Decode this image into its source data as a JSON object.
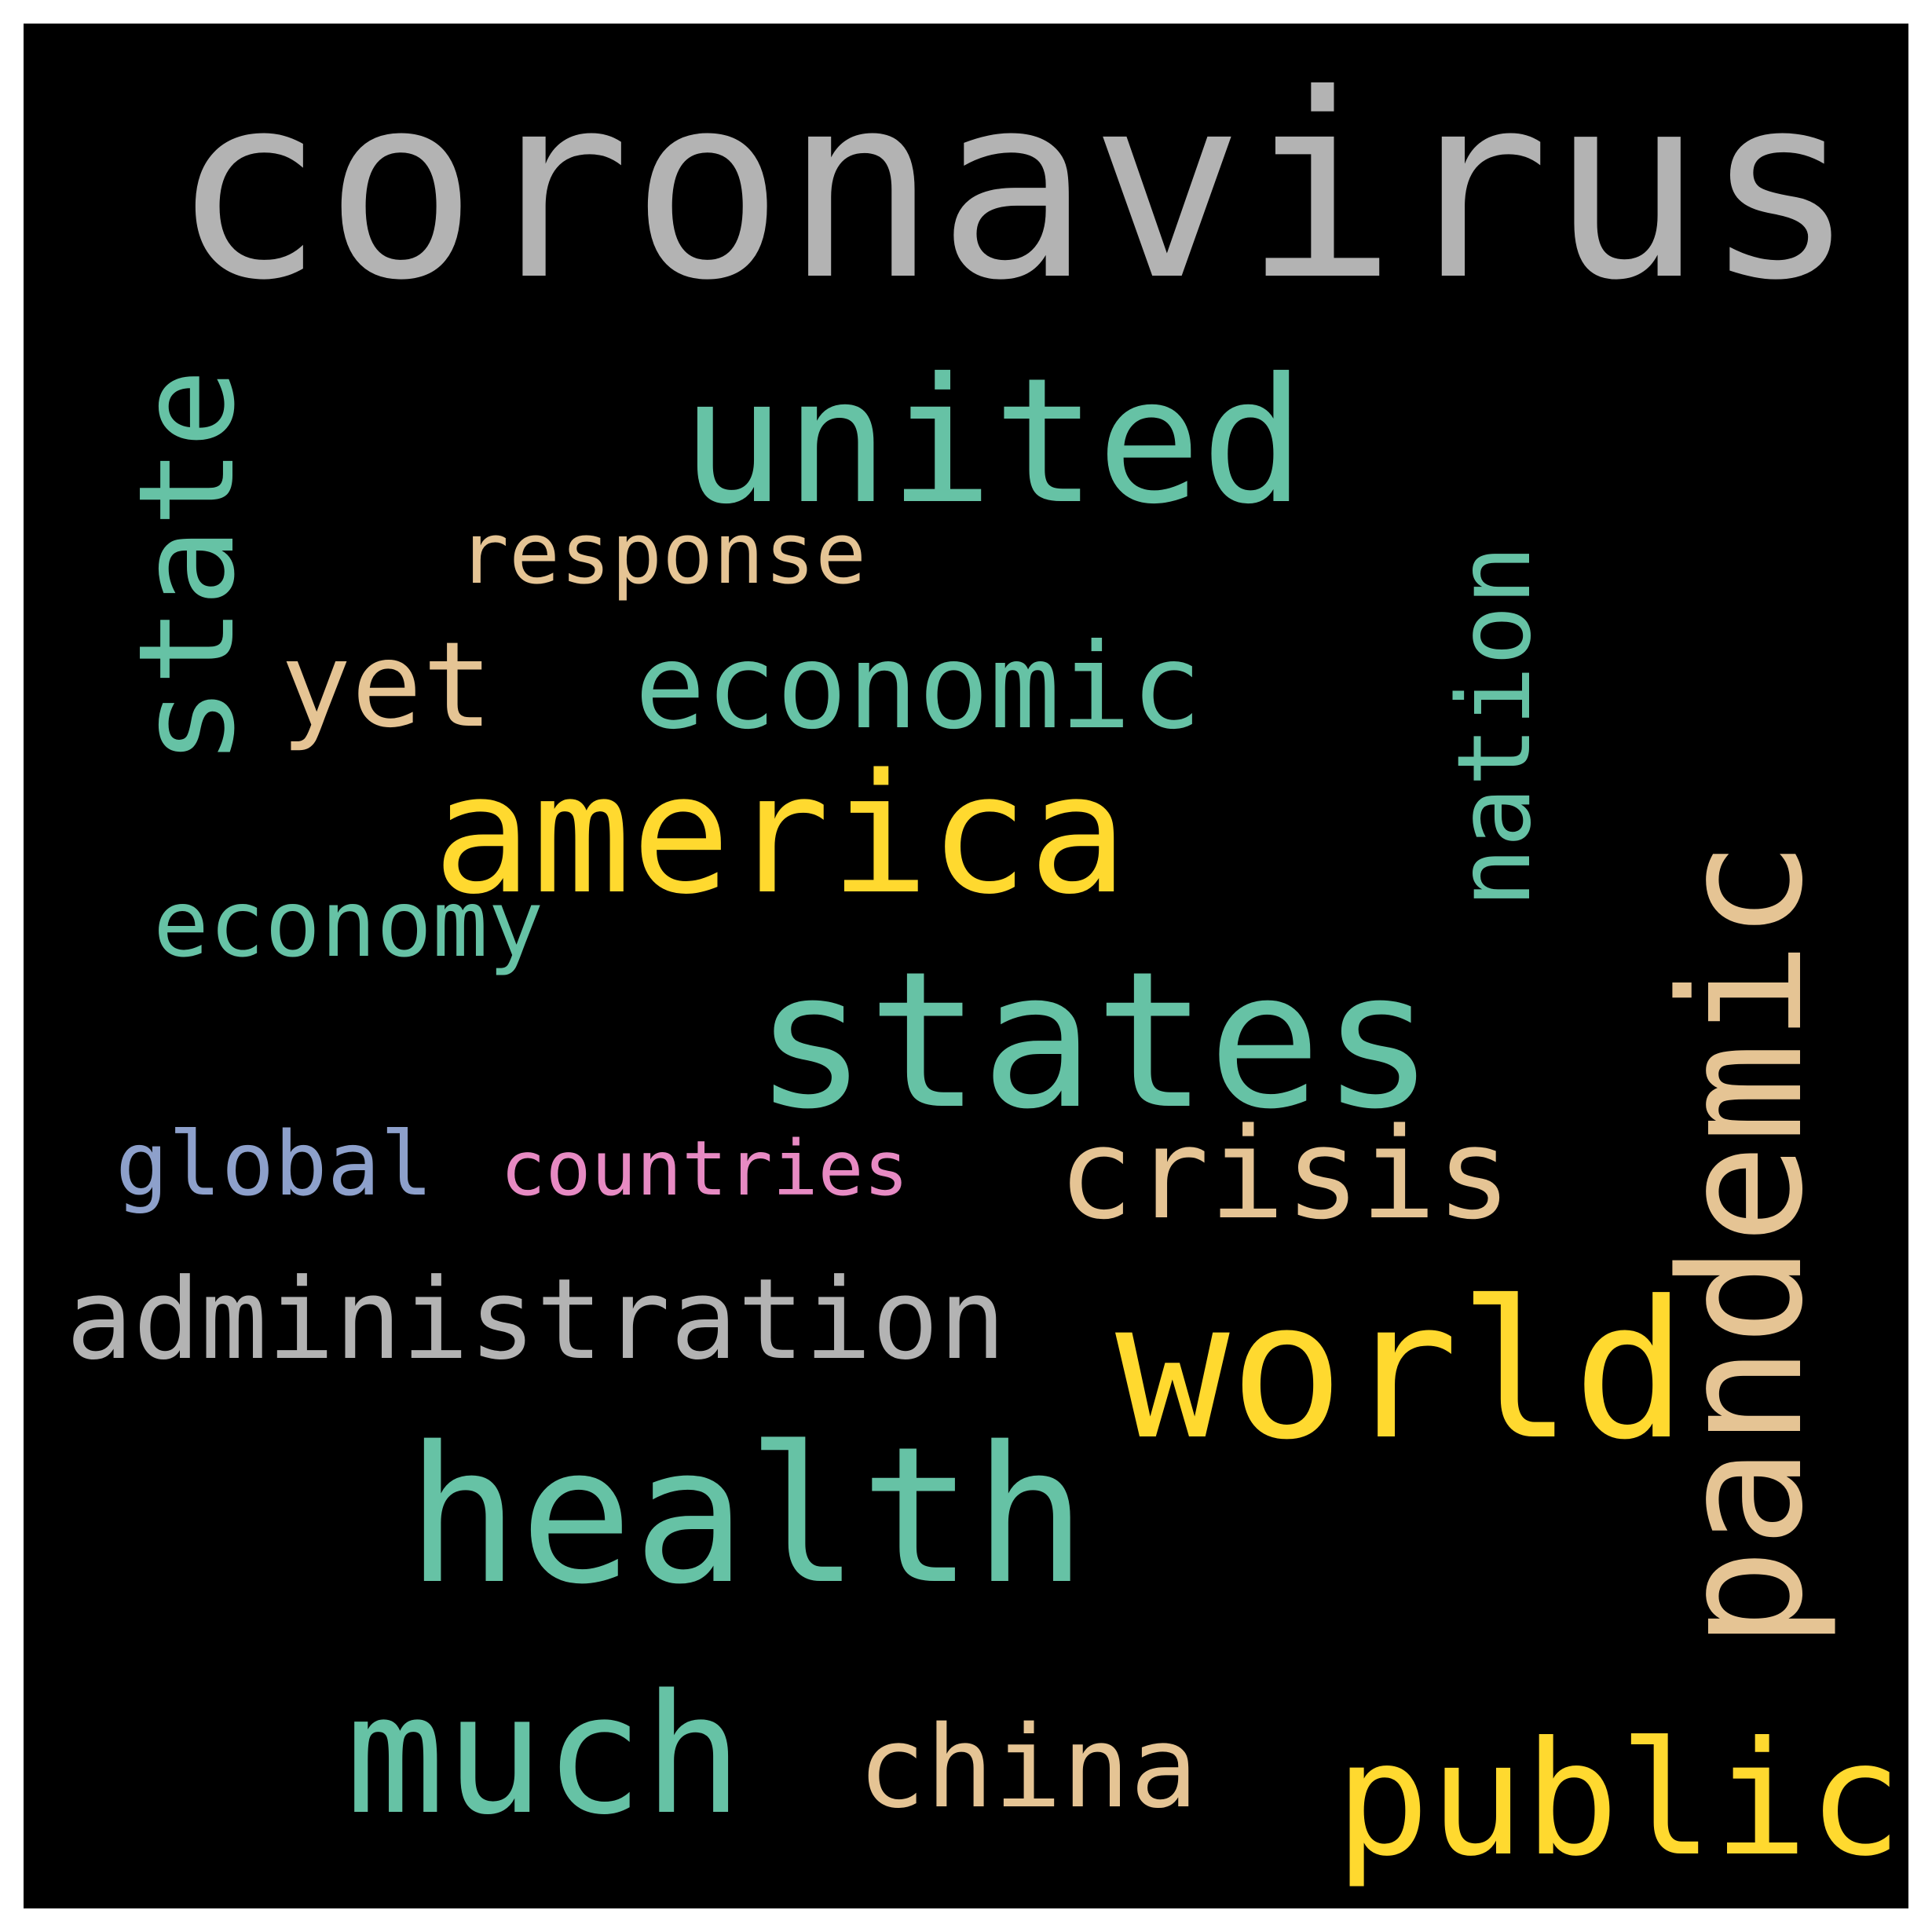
{
  "colors": {
    "background": "#000000",
    "frame": "#ffffff",
    "gray": "#b3b3b3",
    "teal": "#66c2a5",
    "tan": "#e5c494",
    "yellow": "#ffd92f",
    "blue": "#8da0cb",
    "pink": "#e78ac3"
  },
  "words": [
    {
      "text": "coronavirus",
      "color": "#b3b3b3",
      "orientation": "horizontal"
    },
    {
      "text": "united",
      "color": "#66c2a5",
      "orientation": "horizontal"
    },
    {
      "text": "state",
      "color": "#66c2a5",
      "orientation": "vertical"
    },
    {
      "text": "response",
      "color": "#e5c494",
      "orientation": "horizontal"
    },
    {
      "text": "nation",
      "color": "#66c2a5",
      "orientation": "vertical"
    },
    {
      "text": "yet",
      "color": "#e5c494",
      "orientation": "horizontal"
    },
    {
      "text": "economic",
      "color": "#66c2a5",
      "orientation": "horizontal"
    },
    {
      "text": "pandemic",
      "color": "#e5c494",
      "orientation": "vertical"
    },
    {
      "text": "america",
      "color": "#ffd92f",
      "orientation": "horizontal"
    },
    {
      "text": "economy",
      "color": "#66c2a5",
      "orientation": "horizontal"
    },
    {
      "text": "states",
      "color": "#66c2a5",
      "orientation": "horizontal"
    },
    {
      "text": "crisis",
      "color": "#e5c494",
      "orientation": "horizontal"
    },
    {
      "text": "global",
      "color": "#8da0cb",
      "orientation": "horizontal"
    },
    {
      "text": "countries",
      "color": "#e78ac3",
      "orientation": "horizontal"
    },
    {
      "text": "administration",
      "color": "#b3b3b3",
      "orientation": "horizontal"
    },
    {
      "text": "world",
      "color": "#ffd92f",
      "orientation": "horizontal"
    },
    {
      "text": "health",
      "color": "#66c2a5",
      "orientation": "horizontal"
    },
    {
      "text": "much",
      "color": "#66c2a5",
      "orientation": "horizontal"
    },
    {
      "text": "china",
      "color": "#e5c494",
      "orientation": "horizontal"
    },
    {
      "text": "public",
      "color": "#ffd92f",
      "orientation": "horizontal"
    }
  ]
}
